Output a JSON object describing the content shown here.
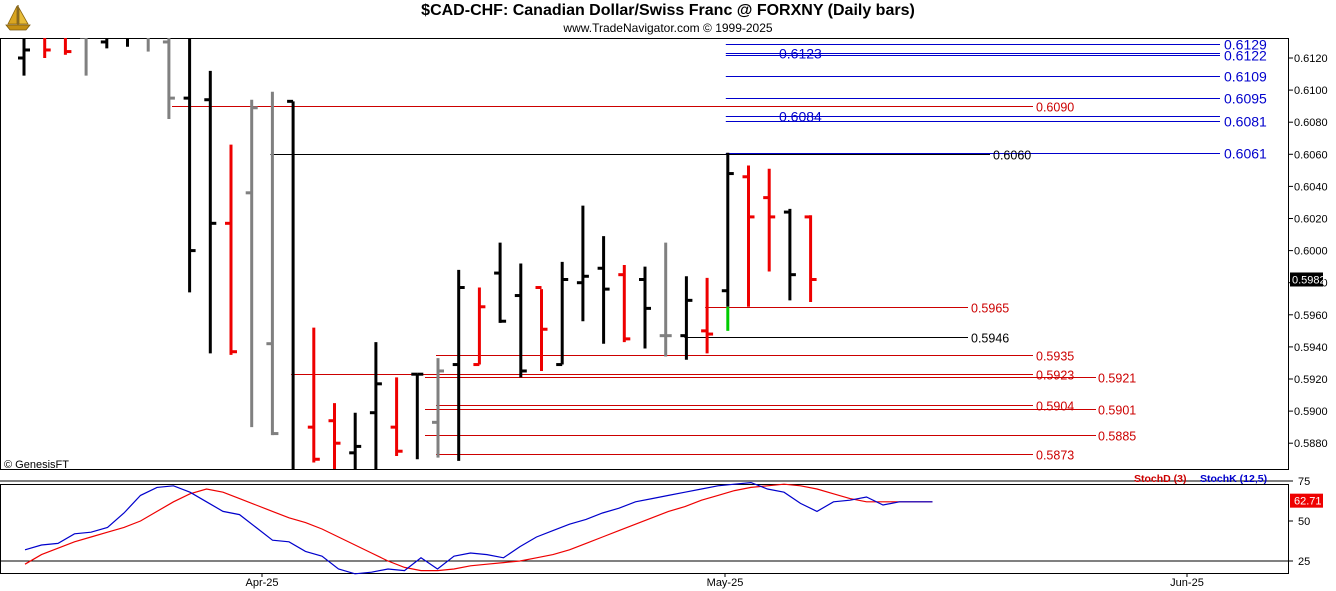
{
  "header": {
    "title": "$CAD-CHF:  Canadian Dollar/Swiss Franc @ FORXNY  (Daily bars)",
    "subtitle": "www.TradeNavigator.com © 1999-2025",
    "logo_icon": "sailing-ship-icon"
  },
  "copyright": "© GenesisFT",
  "colors": {
    "up": "#000000",
    "down": "#ee0000",
    "neutral": "#808080",
    "green": "#00cc00",
    "blue": "#0000cc",
    "red": "#cc0000"
  },
  "chart_data": [
    {
      "type": "ohlc",
      "title": "$CAD-CHF:  Canadian Dollar/Swiss Franc @ FORXNY  (Daily bars)",
      "ylim": [
        0.5865,
        0.6133
      ],
      "y_ticks": [
        "0.6120",
        "0.6100",
        "0.6080",
        "0.6060",
        "0.6040",
        "0.6020",
        "0.6000",
        "0.5980",
        "0.5960",
        "0.5940",
        "0.5920",
        "0.5900",
        "0.5880"
      ],
      "x_labels": [
        "Apr-25",
        "May-25",
        "Jun-25"
      ],
      "last_price": "0.5982",
      "bars": [
        {
          "h": 0.615,
          "l": 0.6109,
          "o": 0.612,
          "c": 0.6125,
          "col": "up"
        },
        {
          "h": 0.615,
          "l": 0.612,
          "o": 0.6135,
          "c": 0.6125,
          "col": "down"
        },
        {
          "h": 0.615,
          "l": 0.6122,
          "o": 0.6136,
          "c": 0.6124,
          "col": "down"
        },
        {
          "h": 0.615,
          "l": 0.6109,
          "o": 0.6133,
          "c": 0.6138,
          "col": "neutral"
        },
        {
          "h": 0.615,
          "l": 0.6126,
          "o": 0.613,
          "c": 0.6135,
          "col": "up"
        },
        {
          "h": 0.615,
          "l": 0.6127,
          "o": 0.6135,
          "c": 0.614,
          "col": "up"
        },
        {
          "h": 0.615,
          "l": 0.6124,
          "o": 0.6134,
          "c": 0.614,
          "col": "neutral"
        },
        {
          "h": 0.6145,
          "l": 0.6082,
          "o": 0.613,
          "c": 0.6095,
          "col": "neutral"
        },
        {
          "h": 0.6133,
          "l": 0.5974,
          "o": 0.6095,
          "c": 0.6,
          "col": "up"
        },
        {
          "h": 0.6112,
          "l": 0.5936,
          "o": 0.6094,
          "c": 0.6017,
          "col": "up"
        },
        {
          "h": 0.6066,
          "l": 0.5935,
          "o": 0.6017,
          "c": 0.5937,
          "col": "down"
        },
        {
          "h": 0.6094,
          "l": 0.589,
          "o": 0.6036,
          "c": 0.6089,
          "col": "neutral"
        },
        {
          "h": 0.6099,
          "l": 0.5885,
          "o": 0.5942,
          "c": 0.5886,
          "col": "neutral"
        },
        {
          "h": 0.6093,
          "l": 0.5838,
          "o": 0.6093,
          "c": 0.585,
          "col": "up"
        },
        {
          "h": 0.5952,
          "l": 0.5868,
          "o": 0.589,
          "c": 0.587,
          "col": "down"
        },
        {
          "h": 0.5905,
          "l": 0.584,
          "o": 0.5894,
          "c": 0.588,
          "col": "down"
        },
        {
          "h": 0.5899,
          "l": 0.5839,
          "o": 0.5874,
          "c": 0.5878,
          "col": "up"
        },
        {
          "h": 0.5943,
          "l": 0.5849,
          "o": 0.5899,
          "c": 0.5917,
          "col": "up"
        },
        {
          "h": 0.5921,
          "l": 0.5872,
          "o": 0.589,
          "c": 0.5875,
          "col": "down"
        },
        {
          "h": 0.5923,
          "l": 0.587,
          "o": 0.5923,
          "c": 0.5923,
          "col": "up"
        },
        {
          "h": 0.5933,
          "l": 0.5871,
          "o": 0.5893,
          "c": 0.5925,
          "col": "neutral"
        },
        {
          "h": 0.5988,
          "l": 0.5869,
          "o": 0.5929,
          "c": 0.5977,
          "col": "up"
        },
        {
          "h": 0.5977,
          "l": 0.5929,
          "o": 0.5929,
          "c": 0.5965,
          "col": "down"
        },
        {
          "h": 0.6005,
          "l": 0.5955,
          "o": 0.5986,
          "c": 0.5956,
          "col": "up"
        },
        {
          "h": 0.5992,
          "l": 0.5921,
          "o": 0.5972,
          "c": 0.5925,
          "col": "up"
        },
        {
          "h": 0.5976,
          "l": 0.5925,
          "o": 0.5977,
          "c": 0.5951,
          "col": "down"
        },
        {
          "h": 0.5993,
          "l": 0.5929,
          "o": 0.5929,
          "c": 0.5982,
          "col": "up"
        },
        {
          "h": 0.6028,
          "l": 0.5956,
          "o": 0.598,
          "c": 0.5984,
          "col": "up"
        },
        {
          "h": 0.6009,
          "l": 0.5942,
          "o": 0.5989,
          "c": 0.5976,
          "col": "up"
        },
        {
          "h": 0.5991,
          "l": 0.5943,
          "o": 0.5985,
          "c": 0.5945,
          "col": "down"
        },
        {
          "h": 0.599,
          "l": 0.5939,
          "o": 0.5982,
          "c": 0.5964,
          "col": "up"
        },
        {
          "h": 0.6005,
          "l": 0.5934,
          "o": 0.5947,
          "c": 0.5947,
          "col": "neutral"
        },
        {
          "h": 0.5984,
          "l": 0.5932,
          "o": 0.5947,
          "c": 0.5969,
          "col": "up"
        },
        {
          "h": 0.5983,
          "l": 0.5936,
          "o": 0.595,
          "c": 0.5948,
          "col": "down"
        },
        {
          "h": 0.6061,
          "l": 0.5965,
          "o": 0.5975,
          "c": 0.6048,
          "col": "up"
        },
        {
          "h": 0.6053,
          "l": 0.5965,
          "o": 0.6046,
          "c": 0.6021,
          "col": "down"
        },
        {
          "h": 0.6051,
          "l": 0.5987,
          "o": 0.6033,
          "c": 0.6021,
          "col": "down"
        },
        {
          "h": 0.6026,
          "l": 0.5969,
          "o": 0.6024,
          "c": 0.5985,
          "col": "up"
        },
        {
          "h": 0.6022,
          "l": 0.5968,
          "o": 0.6021,
          "c": 0.5982,
          "col": "down"
        }
      ],
      "green_bar": {
        "bar": 34,
        "from": 0.5965,
        "to": 0.595
      },
      "levels": [
        {
          "value": 0.6129,
          "label": "0.6129",
          "color": "blue",
          "from_bar": 34
        },
        {
          "value": 0.6122,
          "label": "0.6122",
          "color": "blue",
          "from_bar": 34
        },
        {
          "value": 0.6123,
          "label": "0.6123",
          "color": "blue",
          "from_bar": 34,
          "label_left": true
        },
        {
          "value": 0.6109,
          "label": "0.6109",
          "color": "blue",
          "from_bar": 34
        },
        {
          "value": 0.6095,
          "label": "0.6095",
          "color": "blue",
          "from_bar": 34
        },
        {
          "value": 0.6084,
          "label": "0.6084",
          "color": "blue",
          "from_bar": 34,
          "label_left": true
        },
        {
          "value": 0.6081,
          "label": "0.6081",
          "color": "blue",
          "from_bar": 34
        },
        {
          "value": 0.6061,
          "label": "0.6061",
          "color": "blue",
          "from_bar": 34
        },
        {
          "value": 0.609,
          "label": "0.6090",
          "color": "red",
          "from_bar": 7
        },
        {
          "value": 0.606,
          "label": "0.6060",
          "color": "black",
          "from_bar": 12
        },
        {
          "value": 0.5965,
          "label": "0.5965",
          "color": "red",
          "from_bar": 33
        },
        {
          "value": 0.5946,
          "label": "0.5946",
          "color": "black",
          "from_bar": 32
        },
        {
          "value": 0.5935,
          "label": "0.5935",
          "color": "red",
          "from_bar": 20
        },
        {
          "value": 0.5923,
          "label": "0.5923",
          "color": "red",
          "from_bar": 13
        },
        {
          "value": 0.5921,
          "label": "0.5921",
          "color": "red",
          "from_bar": 13,
          "far": true
        },
        {
          "value": 0.5904,
          "label": "0.5904",
          "color": "red",
          "from_bar": 20
        },
        {
          "value": 0.5901,
          "label": "0.5901",
          "color": "red",
          "from_bar": 13,
          "far": true
        },
        {
          "value": 0.5885,
          "label": "0.5885",
          "color": "red",
          "from_bar": 13,
          "far": true
        },
        {
          "value": 0.5873,
          "label": "0.5873",
          "color": "red",
          "from_bar": 20
        }
      ]
    },
    {
      "type": "line",
      "title": "",
      "ylim": [
        15,
        85
      ],
      "y_ticks": [
        "75",
        "50",
        "25"
      ],
      "series_names": [
        "StochD (3)",
        "StochK (12,5)"
      ],
      "last_value": "62.71",
      "stochD": [
        23,
        29,
        33,
        37,
        40,
        43,
        46,
        50,
        56,
        62,
        67,
        70,
        68,
        64,
        60,
        56,
        52,
        49,
        45,
        40,
        35,
        30,
        25,
        21,
        19,
        19,
        20,
        22,
        23,
        24,
        25,
        27,
        29,
        32,
        36,
        40,
        44,
        48,
        52,
        56,
        59,
        63,
        66,
        69,
        71,
        72,
        73,
        72,
        70,
        67,
        64,
        62,
        62,
        62,
        62,
        62
      ],
      "stochK": [
        32,
        35,
        36,
        42,
        43,
        46,
        55,
        66,
        71,
        72,
        68,
        62,
        56,
        54,
        46,
        38,
        37,
        31,
        28,
        20,
        17,
        18,
        20,
        19,
        27,
        20,
        28,
        30,
        29,
        27,
        34,
        40,
        44,
        48,
        51,
        55,
        58,
        62,
        64,
        66,
        68,
        70,
        72,
        73,
        74,
        70,
        68,
        61,
        56,
        62,
        63,
        65,
        60,
        62,
        62,
        62
      ]
    }
  ]
}
